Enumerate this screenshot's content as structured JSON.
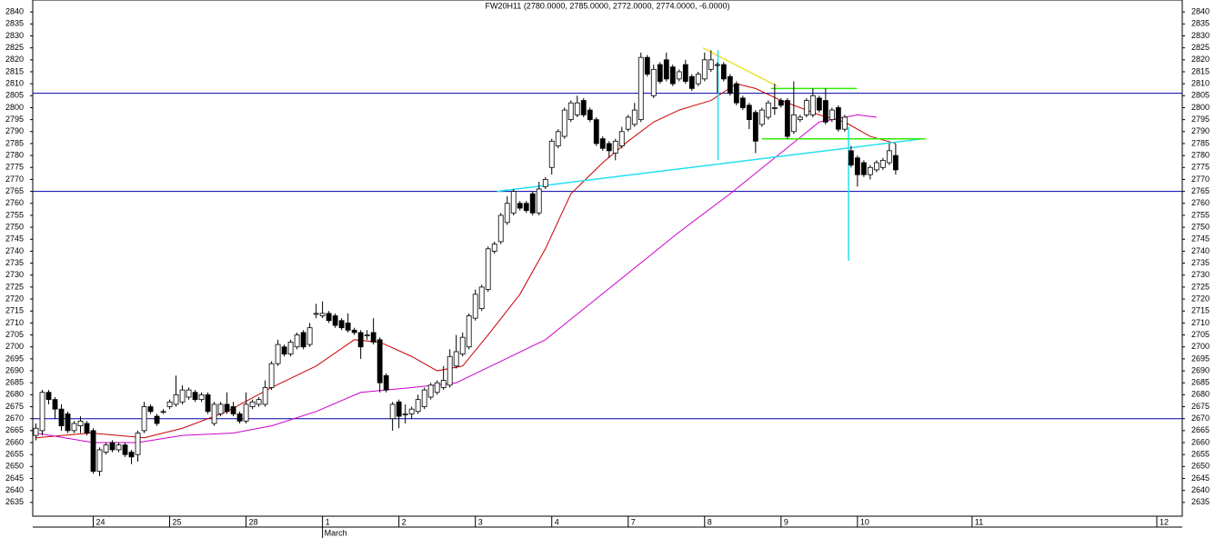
{
  "chart_data": {
    "type": "candlestick",
    "title": "FW20H11 (2780.0000, 2785.0000, 2772.0000, 2774.0000, -6.0000)",
    "up_color": "#ffffff",
    "down_color": "#000000",
    "ylim": [
      2630,
      2845
    ],
    "yticks": [
      2635,
      2640,
      2645,
      2650,
      2655,
      2660,
      2665,
      2670,
      2675,
      2680,
      2685,
      2690,
      2695,
      2700,
      2705,
      2710,
      2715,
      2720,
      2725,
      2730,
      2735,
      2740,
      2745,
      2750,
      2755,
      2760,
      2765,
      2770,
      2775,
      2780,
      2785,
      2790,
      2795,
      2800,
      2805,
      2810,
      2815,
      2820,
      2825,
      2830,
      2835,
      2840
    ],
    "xlim": [
      -0.5,
      180
    ],
    "xticks": [
      {
        "value": 9,
        "label": "24"
      },
      {
        "value": 21,
        "label": "25"
      },
      {
        "value": 33,
        "label": "28"
      },
      {
        "value": 45,
        "label": "1"
      },
      {
        "value": 57,
        "label": "2"
      },
      {
        "value": 69,
        "label": "3"
      },
      {
        "value": 81,
        "label": "4"
      },
      {
        "value": 93,
        "label": "7"
      },
      {
        "value": 105,
        "label": "8"
      },
      {
        "value": 117,
        "label": "9"
      },
      {
        "value": 129,
        "label": "10"
      },
      {
        "value": 147,
        "label": "11"
      },
      {
        "value": 176,
        "label": "12"
      }
    ],
    "month_label": {
      "value": 45,
      "label": "March"
    },
    "ohlc": [
      [
        2663,
        2668,
        2661,
        2666
      ],
      [
        2665,
        2682,
        2663,
        2681
      ],
      [
        2681,
        2682,
        2676,
        2678
      ],
      [
        2678,
        2679,
        2670,
        2674
      ],
      [
        2674,
        2676,
        2665,
        2667
      ],
      [
        2672,
        2673,
        2664,
        2665
      ],
      [
        2665,
        2669,
        2664,
        2668
      ],
      [
        2667,
        2671,
        2664,
        2669
      ],
      [
        2668,
        2669,
        2663,
        2664
      ],
      [
        2665,
        2666,
        2647,
        2648
      ],
      [
        2648,
        2658,
        2646,
        2657
      ],
      [
        2656,
        2660,
        2655,
        2659
      ],
      [
        2660,
        2661,
        2656,
        2657
      ],
      [
        2657,
        2660,
        2656,
        2659
      ],
      [
        2659,
        2660,
        2654,
        2655
      ],
      [
        2656,
        2657,
        2651,
        2654
      ],
      [
        2655,
        2665,
        2652,
        2664
      ],
      [
        2665,
        2677,
        2664,
        2675
      ],
      [
        2675,
        2676,
        2672,
        2673
      ],
      [
        2671,
        2672,
        2667,
        2668
      ],
      [
        2673,
        2674,
        2672,
        2673
      ],
      [
        2675,
        2678,
        2674,
        2677
      ],
      [
        2676,
        2688,
        2675,
        2680
      ],
      [
        2677,
        2684,
        2676,
        2682
      ],
      [
        2679,
        2683,
        2678,
        2682
      ],
      [
        2681,
        2682,
        2677,
        2678
      ],
      [
        2678,
        2681,
        2677,
        2680
      ],
      [
        2680,
        2681,
        2672,
        2673
      ],
      [
        2668,
        2677,
        2667,
        2676
      ],
      [
        2672,
        2677,
        2671,
        2676
      ],
      [
        2676,
        2681,
        2672,
        2673
      ],
      [
        2675,
        2677,
        2671,
        2672
      ],
      [
        2672,
        2673,
        2668,
        2669
      ],
      [
        2669,
        2681,
        2668,
        2676
      ],
      [
        2675,
        2678,
        2674,
        2677
      ],
      [
        2676,
        2679,
        2675,
        2678
      ],
      [
        2676,
        2686,
        2675,
        2683
      ],
      [
        2683,
        2694,
        2682,
        2693
      ],
      [
        2693,
        2703,
        2692,
        2701
      ],
      [
        2700,
        2701,
        2696,
        2697
      ],
      [
        2697,
        2703,
        2696,
        2702
      ],
      [
        2700,
        2706,
        2699,
        2705
      ],
      [
        2706,
        2707,
        2699,
        2700
      ],
      [
        2701,
        2710,
        2700,
        2708
      ],
      [
        2714,
        2718,
        2712,
        2714
      ],
      [
        2713,
        2719,
        2712,
        2714
      ],
      [
        2714,
        2715,
        2710,
        2711
      ],
      [
        2713,
        2714,
        2708,
        2709
      ],
      [
        2711,
        2712,
        2707,
        2708
      ],
      [
        2710,
        2714,
        2706,
        2707
      ],
      [
        2707,
        2708,
        2705,
        2706
      ],
      [
        2706,
        2707,
        2695,
        2700
      ],
      [
        2705,
        2707,
        2703,
        2705
      ],
      [
        2706,
        2712,
        2701,
        2702
      ],
      [
        2703,
        2704,
        2681,
        2685
      ],
      [
        2688,
        2689,
        2681,
        2682
      ],
      [
        2670,
        2677,
        2665,
        2676
      ],
      [
        2677,
        2678,
        2666,
        2671
      ],
      [
        2672,
        2676,
        2668,
        2672
      ],
      [
        2672,
        2675,
        2670,
        2674
      ],
      [
        2673,
        2680,
        2672,
        2678
      ],
      [
        2675,
        2683,
        2674,
        2682
      ],
      [
        2679,
        2685,
        2678,
        2684
      ],
      [
        2681,
        2686,
        2680,
        2685
      ],
      [
        2683,
        2692,
        2682,
        2686
      ],
      [
        2684,
        2699,
        2683,
        2696
      ],
      [
        2692,
        2705,
        2691,
        2698
      ],
      [
        2697,
        2706,
        2696,
        2704
      ],
      [
        2700,
        2714,
        2699,
        2713
      ],
      [
        2712,
        2724,
        2711,
        2722
      ],
      [
        2716,
        2726,
        2715,
        2725
      ],
      [
        2724,
        2742,
        2723,
        2741
      ],
      [
        2740,
        2744,
        2739,
        2743
      ],
      [
        2744,
        2756,
        2743,
        2755
      ],
      [
        2752,
        2763,
        2751,
        2760
      ],
      [
        2756,
        2766,
        2755,
        2765
      ],
      [
        2760,
        2761,
        2757,
        2758
      ],
      [
        2760,
        2761,
        2756,
        2757
      ],
      [
        2764,
        2765,
        2755,
        2756
      ],
      [
        2756,
        2769,
        2755,
        2766
      ],
      [
        2767,
        2771,
        2766,
        2770
      ],
      [
        2775,
        2787,
        2772,
        2786
      ],
      [
        2784,
        2791,
        2783,
        2790
      ],
      [
        2788,
        2800,
        2787,
        2799
      ],
      [
        2795,
        2803,
        2794,
        2802
      ],
      [
        2797,
        2805,
        2796,
        2802
      ],
      [
        2803,
        2804,
        2796,
        2797
      ],
      [
        2799,
        2800,
        2794,
        2795
      ],
      [
        2795,
        2796,
        2784,
        2785
      ],
      [
        2787,
        2788,
        2782,
        2783
      ],
      [
        2785,
        2786,
        2779,
        2782
      ],
      [
        2781,
        2787,
        2778,
        2786
      ],
      [
        2784,
        2792,
        2783,
        2790
      ],
      [
        2791,
        2797,
        2790,
        2796
      ],
      [
        2793,
        2802,
        2792,
        2799
      ],
      [
        2795,
        2823,
        2794,
        2821
      ],
      [
        2821,
        2822,
        2813,
        2814
      ],
      [
        2805,
        2818,
        2804,
        2816
      ],
      [
        2818,
        2819,
        2810,
        2811
      ],
      [
        2820,
        2823,
        2811,
        2812
      ],
      [
        2817,
        2818,
        2809,
        2810
      ],
      [
        2812,
        2816,
        2811,
        2815
      ],
      [
        2818,
        2820,
        2810,
        2811
      ],
      [
        2813,
        2814,
        2807,
        2808
      ],
      [
        2810,
        2815,
        2809,
        2814
      ],
      [
        2812,
        2823,
        2811,
        2820
      ],
      [
        2816,
        2824,
        2815,
        2820
      ],
      [
        2818,
        2819,
        2806,
        2818
      ],
      [
        2818,
        2819,
        2811,
        2812
      ],
      [
        2813,
        2814,
        2805,
        2806
      ],
      [
        2810,
        2811,
        2801,
        2802
      ],
      [
        2804,
        2805,
        2799,
        2800
      ],
      [
        2801,
        2802,
        2791,
        2795
      ],
      [
        2798,
        2799,
        2781,
        2786
      ],
      [
        2793,
        2800,
        2792,
        2799
      ],
      [
        2796,
        2803,
        2795,
        2802
      ],
      [
        2800,
        2810,
        2797,
        2800
      ],
      [
        2803,
        2804,
        2800,
        2801
      ],
      [
        2803,
        2804,
        2787,
        2788
      ],
      [
        2790,
        2811,
        2789,
        2797
      ],
      [
        2795,
        2797,
        2794,
        2796
      ],
      [
        2797,
        2804,
        2796,
        2803
      ],
      [
        2797,
        2808,
        2796,
        2805
      ],
      [
        2804,
        2805,
        2798,
        2799
      ],
      [
        2803,
        2808,
        2793,
        2794
      ],
      [
        2795,
        2800,
        2794,
        2799
      ],
      [
        2800,
        2801,
        2790,
        2791
      ],
      [
        2791,
        2797,
        2790,
        2796
      ],
      [
        2782,
        2784,
        2775,
        2776
      ],
      [
        2779,
        2780,
        2767,
        2772
      ],
      [
        2777,
        2778,
        2771,
        2772
      ],
      [
        2772,
        2776,
        2770,
        2775
      ],
      [
        2774,
        2778,
        2773,
        2777
      ],
      [
        2775,
        2779,
        2774,
        2778
      ],
      [
        2777,
        2785,
        2776,
        2782
      ],
      [
        2780,
        2785,
        2772,
        2774
      ]
    ],
    "overlays": [
      {
        "color": "#cc0000",
        "x": [
          0,
          8.6,
          17,
          23,
          30,
          37,
          44,
          50,
          54,
          59,
          63,
          67,
          71,
          76,
          80,
          84,
          89,
          93,
          97,
          101,
          106,
          110,
          113,
          117,
          123,
          127,
          131,
          135
        ],
        "values": [
          2662,
          2664,
          2662,
          2666,
          2673,
          2683,
          2692,
          2703,
          2702,
          2696,
          2690,
          2692,
          2705,
          2722,
          2741,
          2764,
          2777,
          2786,
          2794,
          2799,
          2803,
          2810,
          2808,
          2803,
          2797,
          2794,
          2788,
          2785
        ]
      },
      {
        "color": "#cc00cc",
        "x": [
          0,
          9,
          16,
          23,
          31,
          37,
          44,
          51,
          59,
          66,
          73,
          80,
          87,
          94,
          101,
          109,
          116,
          123,
          129,
          132
        ],
        "values": [
          2664,
          2660,
          2660,
          2663,
          2664,
          2667,
          2673,
          2681,
          2683,
          2685,
          2694,
          2703,
          2718,
          2733,
          2748,
          2764,
          2779,
          2794,
          2797,
          2796
        ]
      }
    ],
    "hlines": [
      {
        "value": 2806,
        "color": "#0000aa"
      },
      {
        "value": 2765,
        "color": "#0000aa"
      },
      {
        "value": 2670,
        "color": "#0000aa"
      }
    ],
    "drawn_lines": [
      {
        "color": "#22e0f0",
        "x": [
          72.4,
          139.3
        ],
        "values": [
          2765,
          2787
        ]
      },
      {
        "color": "#33ee00",
        "x": [
          114,
          139.7
        ],
        "values": [
          2787,
          2787
        ]
      },
      {
        "color": "#33ee00",
        "x": [
          115.4,
          128.9
        ],
        "values": [
          2808,
          2808
        ]
      },
      {
        "color": "#f0e040",
        "x": [
          104.7,
          116.4
        ],
        "values": [
          2825,
          2809
        ]
      },
      {
        "color": "#22e0f0",
        "x": [
          107.1,
          107.1
        ],
        "values": [
          2824,
          2778
        ]
      },
      {
        "color": "#22e0f0",
        "x": [
          127.6,
          127.6
        ],
        "values": [
          2792,
          2736
        ]
      }
    ]
  }
}
